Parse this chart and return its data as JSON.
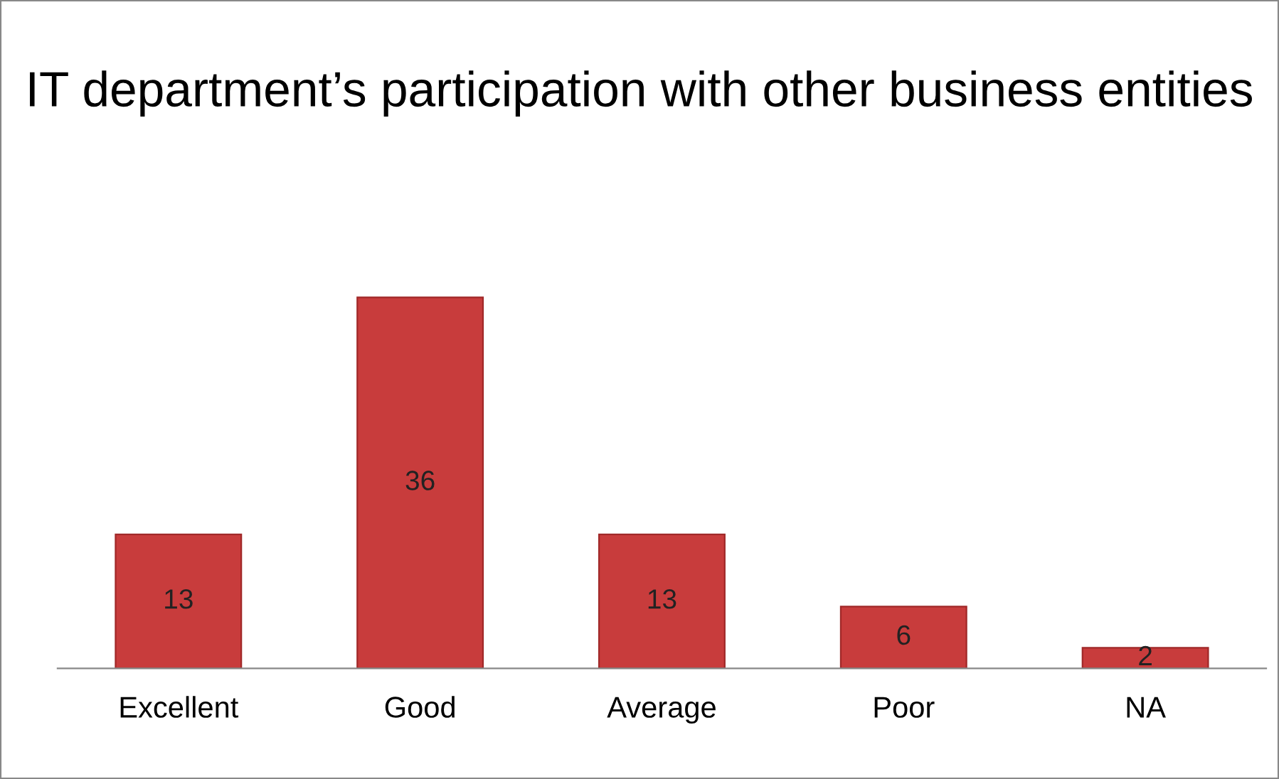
{
  "chart_data": {
    "type": "bar",
    "title": "IT department’s participation with other business entities",
    "categories": [
      "Excellent",
      "Good",
      "Average",
      "Poor",
      "NA"
    ],
    "values": [
      13,
      36,
      13,
      6,
      2
    ],
    "color": "#c83c3c",
    "data_labels": true,
    "grid": false,
    "legend": false,
    "tick_labels": "x"
  }
}
